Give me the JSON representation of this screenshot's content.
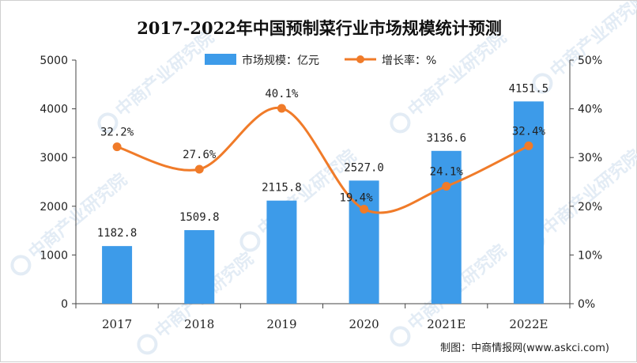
{
  "colors": {
    "bar": "#3d9be9",
    "line": "#f07b29",
    "axis": "#444444",
    "watermark": "#e3ecf5"
  },
  "chart_data": {
    "type": "bar",
    "title": "2017-2022年中国预制菜行业市场规模统计预测",
    "categories": [
      "2017",
      "2018",
      "2019",
      "2020",
      "2021E",
      "2022E"
    ],
    "series": [
      {
        "name": "市场规模：亿元",
        "type": "bar",
        "axis": "left",
        "values": [
          1182.8,
          1509.8,
          2115.8,
          2527.0,
          3136.6,
          4151.5
        ],
        "labels": [
          "1182.8",
          "1509.8",
          "2115.8",
          "2527.0",
          "3136.6",
          "4151.5"
        ]
      },
      {
        "name": "增长率：%",
        "type": "line",
        "axis": "right",
        "values": [
          32.2,
          27.6,
          40.1,
          19.4,
          24.1,
          32.4
        ],
        "labels": [
          "32.2%",
          "27.6%",
          "40.1%",
          "19.4%",
          "24.1%",
          "32.4%"
        ]
      }
    ],
    "y_left": {
      "range": [
        0,
        5000
      ],
      "ticks": [
        "0",
        "1000",
        "2000",
        "3000",
        "4000",
        "5000"
      ]
    },
    "y_right": {
      "range": [
        0,
        50
      ],
      "ticks": [
        "0%",
        "10%",
        "20%",
        "30%",
        "40%",
        "50%"
      ]
    },
    "legend_position": "top-center",
    "grid": false
  },
  "watermark_text": "中商产业研究院",
  "source_text": "制图：中商情报网(www.askci.com)"
}
